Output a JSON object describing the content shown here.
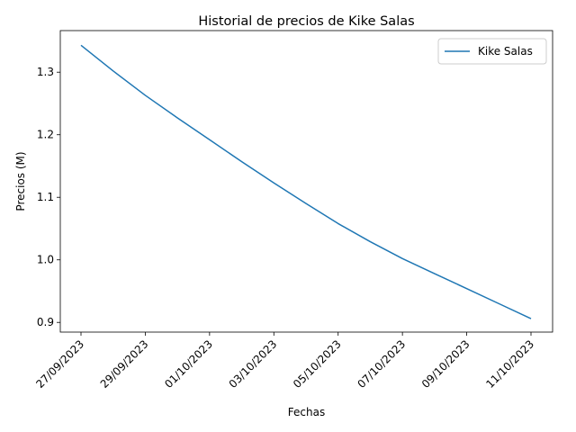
{
  "chart_data": {
    "type": "line",
    "title": "Historial de precios de Kike Salas",
    "xlabel": "Fechas",
    "ylabel": "Precios (M)",
    "x": [
      "27/09/2023",
      "28/09/2023",
      "29/09/2023",
      "30/09/2023",
      "01/10/2023",
      "02/10/2023",
      "03/10/2023",
      "04/10/2023",
      "05/10/2023",
      "06/10/2023",
      "07/10/2023",
      "08/10/2023",
      "09/10/2023",
      "10/10/2023",
      "11/10/2023"
    ],
    "x_ticks": [
      "27/09/2023",
      "29/09/2023",
      "01/10/2023",
      "03/10/2023",
      "05/10/2023",
      "07/10/2023",
      "09/10/2023",
      "11/10/2023"
    ],
    "y_ticks": [
      "0.9",
      "1.0",
      "1.1",
      "1.2",
      "1.3"
    ],
    "ylim": [
      0.8845,
      1.3665
    ],
    "series": [
      {
        "name": "Kike Salas",
        "color": "#1f77b4",
        "values": [
          1.343,
          1.302,
          1.263,
          1.227,
          1.192,
          1.157,
          1.123,
          1.09,
          1.058,
          1.029,
          1.002,
          0.978,
          0.954,
          0.93,
          0.906
        ]
      }
    ],
    "legend": "top-right",
    "grid": false
  }
}
